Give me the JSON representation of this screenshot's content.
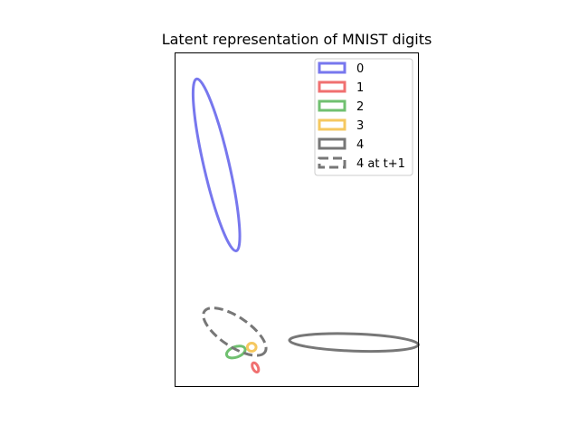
{
  "chart_data": {
    "type": "scatter",
    "title": "Latent representation of MNIST digits",
    "xlabel": "",
    "ylabel": "",
    "xticks": "hidden",
    "yticks": "hidden",
    "grid": false,
    "xlim": [
      0,
      10
    ],
    "ylim": [
      0,
      14
    ],
    "legend": {
      "placement": "top-right",
      "entries": [
        "0",
        "1",
        "2",
        "3",
        "4",
        "4 at t+1"
      ]
    },
    "series": [
      {
        "name": "0",
        "color": "#7777ee",
        "linestyle": "solid",
        "ellipse": {
          "cx": 1.7,
          "cy": 9.3,
          "rx": 0.52,
          "ry": 3.7,
          "angle_deg": -13
        }
      },
      {
        "name": "1",
        "color": "#f07070",
        "linestyle": "solid",
        "ellipse": {
          "cx": 3.3,
          "cy": 0.8,
          "rx": 0.11,
          "ry": 0.21,
          "angle_deg": -25
        }
      },
      {
        "name": "2",
        "color": "#70c070",
        "linestyle": "solid",
        "ellipse": {
          "cx": 2.5,
          "cy": 1.45,
          "rx": 0.4,
          "ry": 0.22,
          "angle_deg": -20
        }
      },
      {
        "name": "3",
        "color": "#f5c860",
        "linestyle": "solid",
        "ellipse": {
          "cx": 3.15,
          "cy": 1.65,
          "rx": 0.18,
          "ry": 0.17,
          "angle_deg": 0
        }
      },
      {
        "name": "4",
        "color": "#777777",
        "linestyle": "solid",
        "ellipse": {
          "cx": 7.35,
          "cy": 1.85,
          "rx": 2.65,
          "ry": 0.36,
          "angle_deg": 2
        }
      },
      {
        "name": "4 at t+1",
        "color": "#777777",
        "linestyle": "dashed",
        "ellipse": {
          "cx": 2.45,
          "cy": 2.3,
          "rx": 1.5,
          "ry": 0.62,
          "angle_deg": 34
        }
      }
    ]
  }
}
